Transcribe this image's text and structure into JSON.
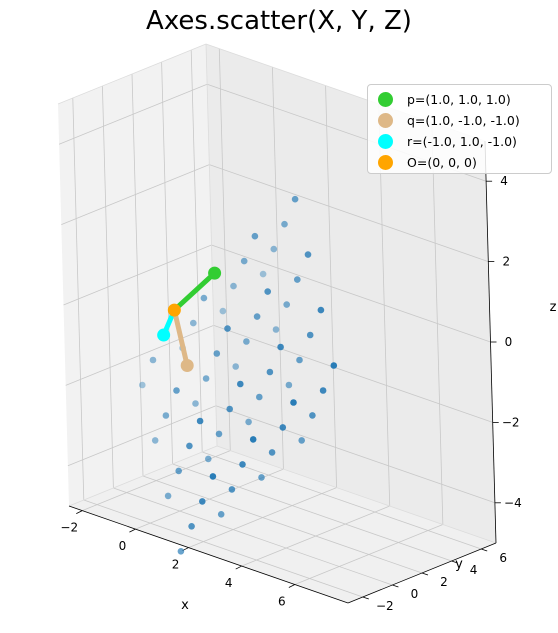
{
  "figure": {
    "title": "Axes.scatter(X, Y, Z)"
  },
  "chart_data": {
    "type": "scatter",
    "projection": "3d",
    "title": "Axes.scatter(X, Y, Z)",
    "xlabel": "x",
    "ylabel": "y",
    "zlabel": "z",
    "xlim": [
      -2.5,
      8.0
    ],
    "ylim": [
      -3.0,
      7.0
    ],
    "zlim": [
      -5.0,
      5.0
    ],
    "xticks": [
      -2,
      0,
      2,
      4,
      6
    ],
    "yticks": [
      -2,
      0,
      2,
      4,
      6
    ],
    "zticks": [
      -4,
      -2,
      0,
      2,
      4
    ],
    "grid": true,
    "legend": "top-right",
    "basis": {
      "p": [
        1.0,
        1.0,
        1.0
      ],
      "q": [
        1.0,
        -1.0,
        -1.0
      ],
      "r": [
        -1.0,
        1.0,
        -1.0
      ],
      "coefficients": [
        0,
        1,
        2,
        3
      ]
    },
    "colors": {
      "points": "#1f77b4",
      "p": "#32cd32",
      "q": "#deb887",
      "r": "#00ffff",
      "origin": "#ffa500"
    },
    "series": [
      {
        "type": "scatter",
        "values": "X = a*p + b*q + c*r for a, b, c in {0, 1, 2, 3}"
      },
      {
        "name": "p=(1.0, 1.0, 1.0)",
        "color": "#32cd32",
        "point": [
          1.0,
          1.0,
          1.0
        ]
      },
      {
        "name": "q=(1.0, -1.0, -1.0)",
        "color": "#deb887",
        "point": [
          1.0,
          -1.0,
          -1.0
        ]
      },
      {
        "name": "r=(-1.0, 1.0, -1.0)",
        "color": "#00ffff",
        "point": [
          -1.0,
          1.0,
          -1.0
        ]
      },
      {
        "name": "O=(0, 0, 0)",
        "color": "#ffa500",
        "point": [
          0,
          0,
          0
        ]
      }
    ]
  },
  "legend": {
    "items": [
      {
        "label": "p=(1.0, 1.0, 1.0)",
        "color": "#32cd32"
      },
      {
        "label": "q=(1.0, -1.0, -1.0)",
        "color": "#deb887"
      },
      {
        "label": "r=(-1.0, 1.0, -1.0)",
        "color": "#00ffff"
      },
      {
        "label": "O=(0, 0, 0)",
        "color": "#ffa500"
      }
    ]
  }
}
